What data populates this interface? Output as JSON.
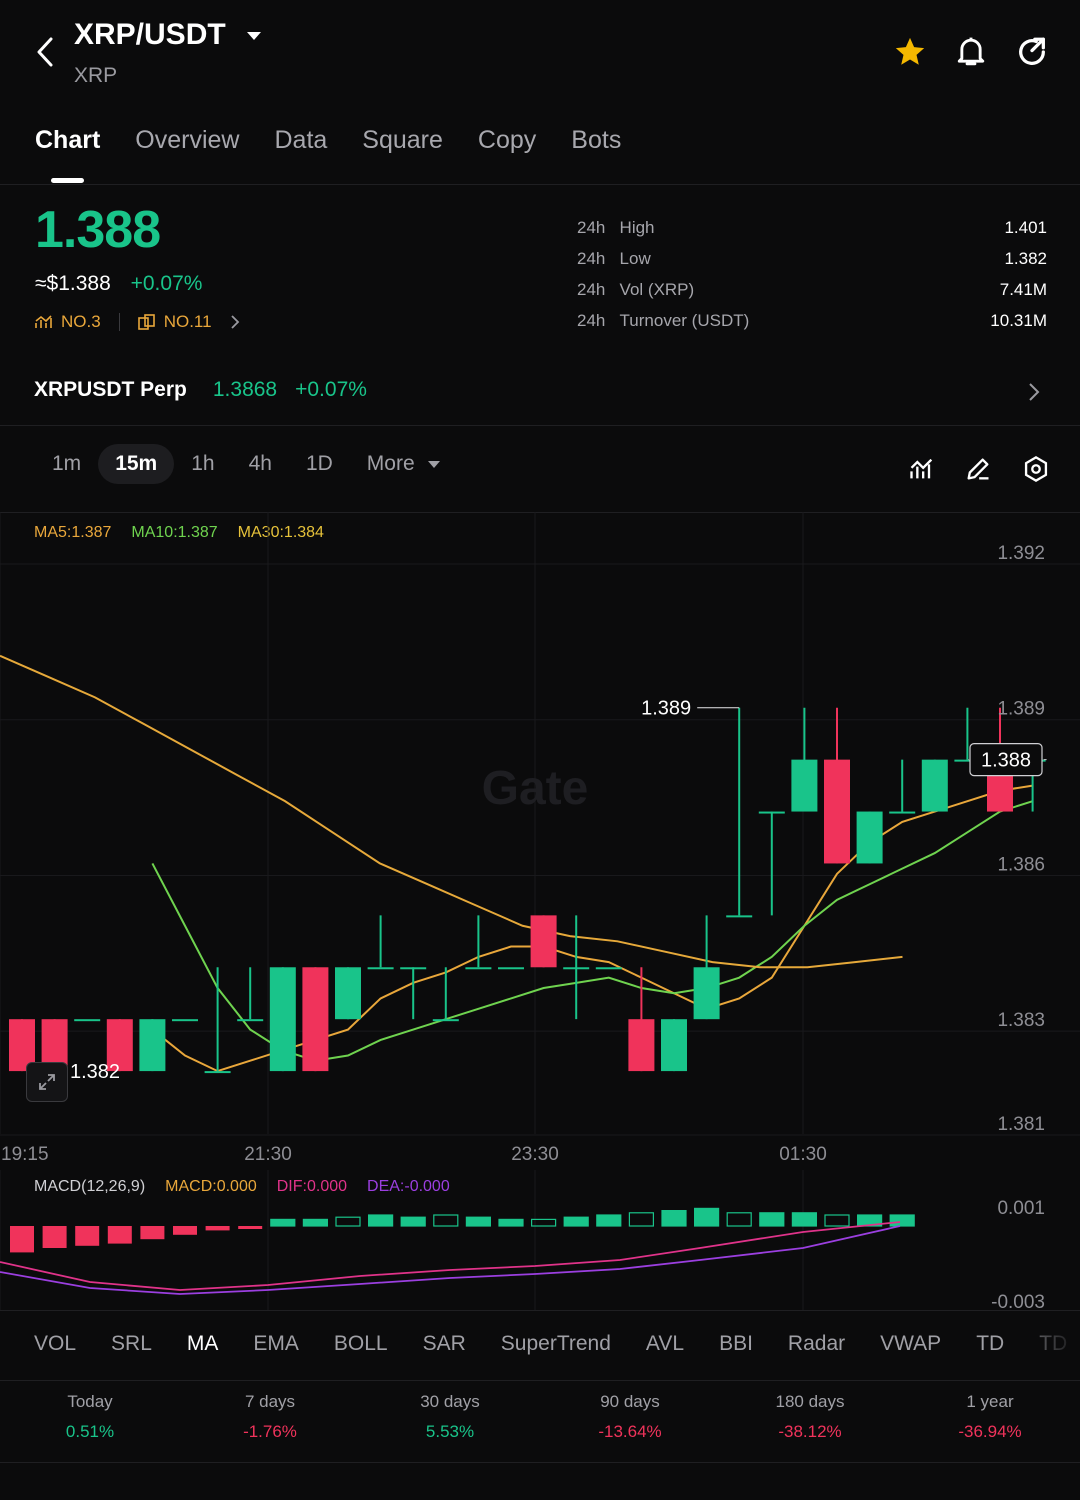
{
  "header": {
    "pair": "XRP/USDT",
    "base": "XRP"
  },
  "tabs": [
    "Chart",
    "Overview",
    "Data",
    "Square",
    "Copy",
    "Bots"
  ],
  "ticker": {
    "price": "1.388",
    "usd_price": "≈$1.388",
    "change": "+0.07%",
    "rank_1": "NO.3",
    "rank_2": "NO.11"
  },
  "stats": [
    {
      "period": "24h",
      "label": "High",
      "value": "1.401"
    },
    {
      "period": "24h",
      "label": "Low",
      "value": "1.382"
    },
    {
      "period": "24h",
      "label": "Vol (XRP)",
      "value": "7.41M"
    },
    {
      "period": "24h",
      "label": "Turnover (USDT)",
      "value": "10.31M"
    }
  ],
  "perp": {
    "name": "XRPUSDT Perp",
    "price": "1.3868",
    "change": "+0.07%"
  },
  "intervals": [
    "1m",
    "15m",
    "1h",
    "4h",
    "1D"
  ],
  "more_label": "More",
  "ma_legend": {
    "ma5": "MA5:1.387",
    "ma10": "MA10:1.387",
    "ma30": "MA30:1.384"
  },
  "colors": {
    "up": "#19c48a",
    "down": "#f0335b",
    "ma5": "#e9a73b",
    "ma10": "#6fd34f",
    "ma30": "#e6a93a",
    "dif": "#e0338a",
    "dea": "#9b3fe0"
  },
  "chart_data": {
    "type": "candlestick",
    "x_ticks": [
      "19:15",
      "21:30",
      "23:30",
      "01:30"
    ],
    "y_ticks": [
      "1.392",
      "1.389",
      "1.386",
      "1.383",
      "1.381"
    ],
    "annotations": {
      "high_marker": "1.389",
      "low_marker": "1.382",
      "last_price": "1.388"
    },
    "watermark": "Gate",
    "candles": [
      {
        "o": 1.383,
        "h": 1.383,
        "l": 1.382,
        "c": 1.382
      },
      {
        "o": 1.383,
        "h": 1.383,
        "l": 1.382,
        "c": 1.382
      },
      {
        "o": 1.383,
        "h": 1.383,
        "l": 1.383,
        "c": 1.383
      },
      {
        "o": 1.383,
        "h": 1.383,
        "l": 1.382,
        "c": 1.382
      },
      {
        "o": 1.382,
        "h": 1.383,
        "l": 1.382,
        "c": 1.383
      },
      {
        "o": 1.383,
        "h": 1.383,
        "l": 1.383,
        "c": 1.383
      },
      {
        "o": 1.382,
        "h": 1.384,
        "l": 1.382,
        "c": 1.382
      },
      {
        "o": 1.383,
        "h": 1.384,
        "l": 1.383,
        "c": 1.383
      },
      {
        "o": 1.382,
        "h": 1.384,
        "l": 1.382,
        "c": 1.384
      },
      {
        "o": 1.384,
        "h": 1.384,
        "l": 1.382,
        "c": 1.382
      },
      {
        "o": 1.383,
        "h": 1.384,
        "l": 1.383,
        "c": 1.384
      },
      {
        "o": 1.384,
        "h": 1.385,
        "l": 1.384,
        "c": 1.384
      },
      {
        "o": 1.384,
        "h": 1.384,
        "l": 1.383,
        "c": 1.384
      },
      {
        "o": 1.383,
        "h": 1.384,
        "l": 1.383,
        "c": 1.383
      },
      {
        "o": 1.384,
        "h": 1.385,
        "l": 1.384,
        "c": 1.384
      },
      {
        "o": 1.384,
        "h": 1.384,
        "l": 1.384,
        "c": 1.384
      },
      {
        "o": 1.385,
        "h": 1.385,
        "l": 1.384,
        "c": 1.384
      },
      {
        "o": 1.384,
        "h": 1.385,
        "l": 1.383,
        "c": 1.384
      },
      {
        "o": 1.384,
        "h": 1.384,
        "l": 1.384,
        "c": 1.384
      },
      {
        "o": 1.383,
        "h": 1.384,
        "l": 1.382,
        "c": 1.382
      },
      {
        "o": 1.382,
        "h": 1.383,
        "l": 1.382,
        "c": 1.383
      },
      {
        "o": 1.383,
        "h": 1.385,
        "l": 1.383,
        "c": 1.384
      },
      {
        "o": 1.385,
        "h": 1.389,
        "l": 1.385,
        "c": 1.385
      },
      {
        "o": 1.387,
        "h": 1.387,
        "l": 1.385,
        "c": 1.387
      },
      {
        "o": 1.387,
        "h": 1.389,
        "l": 1.387,
        "c": 1.388
      },
      {
        "o": 1.388,
        "h": 1.389,
        "l": 1.386,
        "c": 1.386
      },
      {
        "o": 1.386,
        "h": 1.387,
        "l": 1.386,
        "c": 1.387
      },
      {
        "o": 1.387,
        "h": 1.388,
        "l": 1.387,
        "c": 1.387
      },
      {
        "o": 1.387,
        "h": 1.388,
        "l": 1.387,
        "c": 1.388
      },
      {
        "o": 1.388,
        "h": 1.389,
        "l": 1.388,
        "c": 1.388
      },
      {
        "o": 1.388,
        "h": 1.389,
        "l": 1.387,
        "c": 1.387
      },
      {
        "o": 1.388,
        "h": 1.388,
        "l": 1.387,
        "c": 1.388
      }
    ],
    "ma5": [
      1.3828,
      1.3823,
      1.382,
      1.3822,
      1.3824,
      1.3826,
      1.3828,
      1.3834,
      1.3837,
      1.3839,
      1.3842,
      1.3844,
      1.3844,
      1.3842,
      1.3841,
      1.3838,
      1.3835,
      1.3832,
      1.3834,
      1.3838,
      1.3848,
      1.3858,
      1.3864,
      1.3868,
      1.387,
      1.3872,
      1.3874,
      1.3875
    ],
    "ma10": [
      1.386,
      1.3848,
      1.3836,
      1.3828,
      1.3824,
      1.3822,
      1.3823,
      1.3826,
      1.3828,
      1.383,
      1.3832,
      1.3834,
      1.3836,
      1.3837,
      1.3838,
      1.3836,
      1.3835,
      1.3836,
      1.3838,
      1.3842,
      1.3848,
      1.3853,
      1.3856,
      1.3859,
      1.3862,
      1.3866,
      1.387,
      1.3872
    ],
    "ma30": [
      1.39,
      1.3896,
      1.3892,
      1.3887,
      1.3882,
      1.3877,
      1.3872,
      1.3866,
      1.386,
      1.3856,
      1.3852,
      1.3848,
      1.3846,
      1.3845,
      1.3843,
      1.3841,
      1.384,
      1.384,
      1.3841,
      1.3842
    ],
    "macd": {
      "title": "MACD(12,26,9)",
      "macd_label": "MACD:0.000",
      "dif_label": "DIF:0.000",
      "dea_label": "DEA:-0.000",
      "y_ticks": [
        "0.001",
        "-0.003"
      ],
      "histogram": [
        -0.0012,
        -0.001,
        -0.0009,
        -0.0008,
        -0.0006,
        -0.0004,
        -0.0002,
        -0.0001,
        0.0003,
        0.0003,
        0.0004,
        0.0005,
        0.0004,
        0.0005,
        0.0004,
        0.0003,
        0.0003,
        0.0004,
        0.0005,
        0.0006,
        0.0007,
        0.0008,
        0.0006,
        0.0006,
        0.0006,
        0.0005,
        0.0005,
        0.0005
      ]
    }
  },
  "indicators": [
    "VOL",
    "SRL",
    "MA",
    "EMA",
    "BOLL",
    "SAR",
    "SuperTrend",
    "AVL",
    "BBI",
    "Radar",
    "VWAP",
    "TD",
    "TD"
  ],
  "performance": [
    {
      "label": "Today",
      "value": "0.51%"
    },
    {
      "label": "7 days",
      "value": "-1.76%"
    },
    {
      "label": "30 days",
      "value": "5.53%"
    },
    {
      "label": "90 days",
      "value": "-13.64%"
    },
    {
      "label": "180 days",
      "value": "-38.12%"
    },
    {
      "label": "1 year",
      "value": "-36.94%"
    }
  ]
}
